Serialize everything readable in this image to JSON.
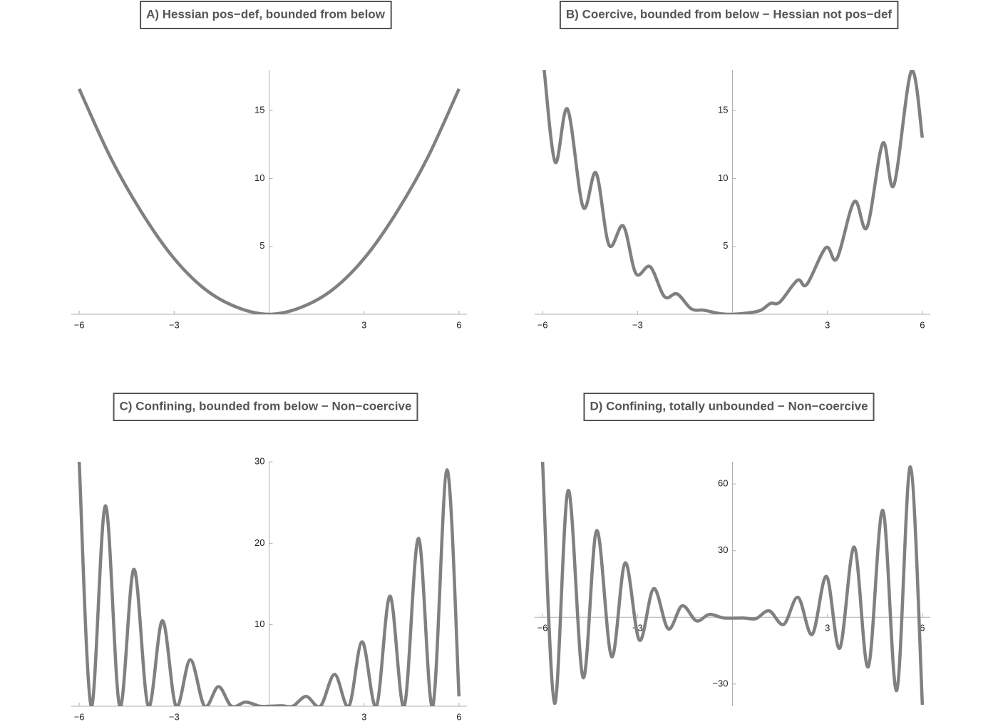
{
  "chart_data": [
    {
      "type": "line",
      "title": "A) Hessian pos−def, bounded from below",
      "x": [
        -6,
        -5,
        -4,
        -3,
        -2,
        -1,
        0,
        1,
        2,
        3,
        4,
        5,
        6
      ],
      "series": [
        {
          "color": "#808080",
          "values": [
            16.6,
            11.5,
            7.4,
            4.1,
            1.8,
            0.5,
            0,
            0.5,
            1.8,
            4.1,
            7.4,
            11.5,
            16.6
          ]
        }
      ],
      "xlim": [
        -6.25,
        6.25
      ],
      "ylim": [
        0,
        18
      ],
      "xticks": [
        {
          "value": -6,
          "label": "−6"
        },
        {
          "value": -3,
          "label": "−3"
        },
        3,
        6
      ],
      "yticks": [
        5,
        10,
        15
      ]
    },
    {
      "type": "line",
      "title": "B) Coercive, bounded from below − Hessian not pos−def",
      "x": [
        -5.95,
        -5.6,
        -5.21,
        -4.72,
        -4.31,
        -3.9,
        -3.45,
        -3.05,
        -2.6,
        -2.15,
        -1.75,
        -1.3,
        -0.9,
        -0.4,
        0,
        0.5,
        0.9,
        1.2,
        1.5,
        2.05,
        2.35,
        2.95,
        3.3,
        3.85,
        4.25,
        4.75,
        5.1,
        5.65,
        6
      ],
      "series": [
        {
          "color": "#808080",
          "values": [
            18,
            11.2,
            15.1,
            7.9,
            10.4,
            5.1,
            6.5,
            3.0,
            3.5,
            1.3,
            1.5,
            0.4,
            0.3,
            0.05,
            0,
            0.1,
            0.3,
            0.8,
            0.9,
            2.5,
            2.2,
            4.9,
            4.1,
            8.3,
            6.4,
            12.6,
            9.5,
            17.9,
            13.0
          ]
        }
      ],
      "xlim": [
        -6.25,
        6.25
      ],
      "ylim": [
        0,
        18
      ],
      "xticks": [
        {
          "value": -6,
          "label": "−6"
        },
        {
          "value": -3,
          "label": "−3"
        },
        3,
        6
      ],
      "yticks": [
        5,
        10,
        15
      ]
    },
    {
      "type": "line",
      "title": "C) Confining, bounded from below − Non−coercive",
      "x": [
        -6,
        -5.62,
        -5.17,
        -4.72,
        -4.27,
        -3.82,
        -3.37,
        -2.94,
        -2.49,
        -2.04,
        -1.6,
        -1.19,
        -0.74,
        -0.3,
        0,
        0.4,
        0.75,
        1.17,
        1.62,
        2.07,
        2.52,
        2.94,
        3.39,
        3.82,
        4.27,
        4.72,
        5.17,
        5.62,
        6
      ],
      "series": [
        {
          "color": "#808080",
          "values": [
            30,
            0,
            24.6,
            0,
            16.8,
            0,
            10.5,
            0,
            5.7,
            0,
            2.4,
            0,
            0.5,
            0,
            0,
            0.05,
            0,
            1.2,
            0,
            3.9,
            0,
            7.9,
            0,
            13.5,
            0,
            20.6,
            0,
            29.0,
            1.2
          ]
        }
      ],
      "xlim": [
        -6.25,
        6.25
      ],
      "ylim": [
        0,
        30
      ],
      "xticks": [
        {
          "value": -6,
          "label": "−6"
        },
        {
          "value": -3,
          "label": "−3"
        },
        3,
        6
      ],
      "yticks": [
        10,
        20,
        30
      ]
    },
    {
      "type": "line",
      "title": "D) Confining, totally unbounded − Non−coercive",
      "x": [
        -6,
        -5.62,
        -5.19,
        -4.72,
        -4.29,
        -3.82,
        -3.39,
        -2.94,
        -2.49,
        -2.03,
        -1.59,
        -1.14,
        -0.73,
        -0.27,
        0.34,
        0.74,
        1.16,
        1.62,
        2.07,
        2.52,
        2.97,
        3.39,
        3.85,
        4.29,
        4.75,
        5.19,
        5.62,
        6
      ],
      "series": [
        {
          "color": "#808080",
          "values": [
            70,
            -38.7,
            57.1,
            -27.1,
            39.0,
            -17.7,
            24.5,
            -10.3,
            12.9,
            -5.2,
            5.2,
            -1.6,
            1.3,
            -0.3,
            -0.3,
            -0.6,
            2.9,
            -3.2,
            9.0,
            -7.7,
            18.4,
            -13.9,
            31.6,
            -22.3,
            48.1,
            -32.9,
            67.7,
            -39.4
          ]
        }
      ],
      "xlim": [
        -6.25,
        6.25
      ],
      "ylim": [
        -40,
        70
      ],
      "xticks": [
        {
          "value": -6,
          "label": "−6"
        },
        {
          "value": -3,
          "label": "−3"
        },
        3,
        6
      ],
      "yticks": [
        {
          "value": -30,
          "label": "−30"
        },
        30,
        60
      ]
    }
  ]
}
